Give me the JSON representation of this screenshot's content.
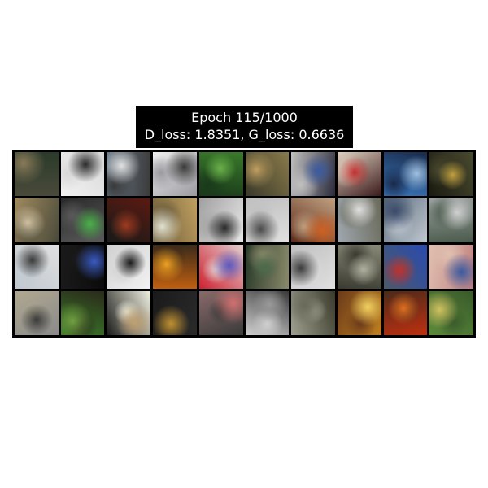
{
  "title": {
    "line1": "Epoch 115/1000",
    "line2": "D_loss: 1.8351, G_loss: 0.6636"
  },
  "grid": {
    "rows": 4,
    "cols": 10,
    "cells": [
      [
        "#4a4a3a",
        "#8a7a5a",
        "#2a3a2a"
      ],
      [
        "#f2f2f2",
        "#2a2a2a",
        "#d8d8d8"
      ],
      [
        "#6a7a8a",
        "#e0e0e0",
        "#3a3a3a"
      ],
      [
        "#f0f0f0",
        "#3a3a3a",
        "#9a9aa0"
      ],
      [
        "#3a7a2a",
        "#6ab04a",
        "#1a3a1a"
      ],
      [
        "#8a7a4a",
        "#c0a060",
        "#3a3a2a"
      ],
      [
        "#2a2a3a",
        "#3a5aa0",
        "#c0c0c0"
      ],
      [
        "#3a1a1a",
        "#c03030",
        "#e0d0c0"
      ],
      [
        "#3a7ac0",
        "#a0c0e0",
        "#1a2a4a"
      ],
      [
        "#1a1a10",
        "#c0a040",
        "#4a4a30"
      ],
      [
        "#a08a60",
        "#d0c0a0",
        "#4a4a3a"
      ],
      [
        "#2a2a2a",
        "#4ab04a",
        "#5a5a5a"
      ],
      [
        "#5a1a10",
        "#a03a20",
        "#1a1a1a"
      ],
      [
        "#c0a060",
        "#e0e0d0",
        "#6a5a3a"
      ],
      [
        "#e8e8e8",
        "#2a2a2a",
        "#a0a0a0"
      ],
      [
        "#e0e0e0",
        "#4a4a4a",
        "#c0c0c0"
      ],
      [
        "#5a2a1a",
        "#d06020",
        "#c0a080"
      ],
      [
        "#a0a8b0",
        "#e0e0e0",
        "#6a6a5a"
      ],
      [
        "#5a6a7a",
        "#3a4a6a",
        "#c0c8d0"
      ],
      [
        "#9aa0a0",
        "#d0d0d0",
        "#4a5a4a"
      ],
      [
        "#e0e0e0",
        "#3a3a3a",
        "#c0c8d0"
      ],
      [
        "#0a0a0a",
        "#3a5ac0",
        "#1a1a1a"
      ],
      [
        "#f2f2f2",
        "#1a1a1a",
        "#d0d0d0"
      ],
      [
        "#c06010",
        "#f0a020",
        "#3a2a1a"
      ],
      [
        "#d02030",
        "#5a5ac0",
        "#e0d0d0"
      ],
      [
        "#2a3a2a",
        "#4a6a4a",
        "#8a8a6a"
      ],
      [
        "#c0c0c0",
        "#3a3a3a",
        "#e0e0e0"
      ],
      [
        "#8a8a7a",
        "#b0b0a0",
        "#3a3a30"
      ],
      [
        "#2a4ab0",
        "#c03030",
        "#4a5a6a"
      ],
      [
        "#c08080",
        "#3a5aa0",
        "#e0c0b0"
      ],
      [
        "#8a8a8a",
        "#3a3a3a",
        "#b0a890"
      ],
      [
        "#3a7a2a",
        "#70a040",
        "#2a2a1a"
      ],
      [
        "#1a1a1a",
        "#c0a070",
        "#f0f0e0"
      ],
      [
        "#1a1a1a",
        "#c09030",
        "#2a2a2a"
      ],
      [
        "#8a6a6a",
        "#d07070",
        "#3a3a3a"
      ],
      [
        "#3a3a3a",
        "#9a9a9a",
        "#d0d0d0"
      ],
      [
        "#3a3a2a",
        "#6a6a5a",
        "#a0a090"
      ],
      [
        "#c08020",
        "#f0d060",
        "#6a3a1a"
      ],
      [
        "#c03010",
        "#e07020",
        "#4a2a1a"
      ],
      [
        "#5a8a3a",
        "#d0c060",
        "#3a5a2a"
      ]
    ]
  }
}
